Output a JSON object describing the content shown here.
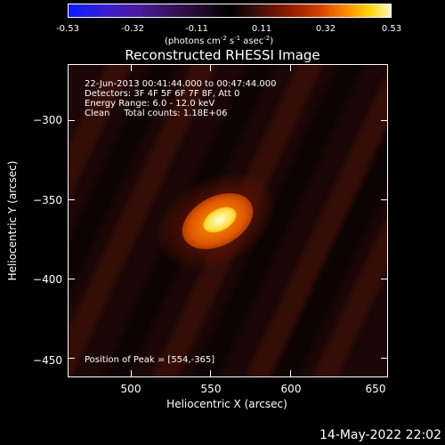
{
  "colorbar": {
    "ticks": [
      "-0.53",
      "-0.32",
      "-0.11",
      "0.11",
      "0.32",
      "0.53"
    ],
    "unit_main": "(photons cm",
    "unit_sup1": "-2",
    "unit_s": " s",
    "unit_sup2": "-1",
    "unit_asec": " asec",
    "unit_sup3": "-2",
    "unit_end": ")"
  },
  "title": "Reconstructed RHESSI Image",
  "info": {
    "line1": "22-Jun-2013 00:41:44.000 to 00:47:44.000",
    "line2": "Detectors: 3F 4F 5F 6F 7F 8F, Att 0",
    "line3": "Energy Range: 6.0 - 12.0 keV",
    "line4": "Clean     Total counts: 1.18E+06",
    "peak": "Position of Peak = [554,-365]"
  },
  "axes": {
    "xlabel": "Heliocentric X (arcsec)",
    "ylabel": "Heliocentric Y (arcsec)",
    "xticks": [
      "500",
      "550",
      "600",
      "650"
    ],
    "yticks": [
      "−300",
      "−350",
      "−400",
      "−450"
    ]
  },
  "timestamp": "14-May-2022 22:02"
}
